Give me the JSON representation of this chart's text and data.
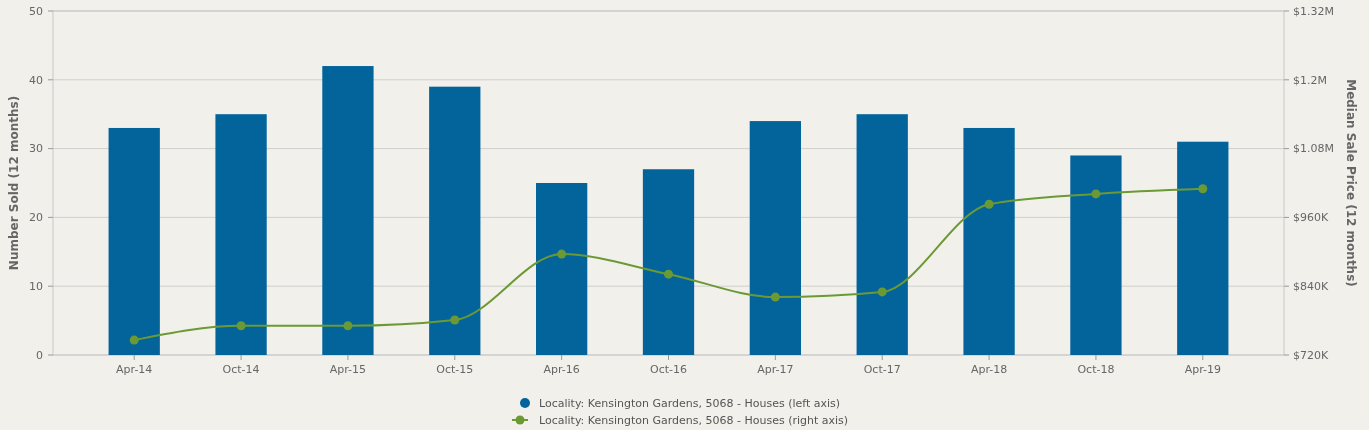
{
  "chart_data": {
    "type": "bar",
    "categories": [
      "Apr-14",
      "Oct-14",
      "Apr-15",
      "Oct-15",
      "Apr-16",
      "Oct-16",
      "Apr-17",
      "Oct-17",
      "Apr-18",
      "Oct-18",
      "Apr-19"
    ],
    "series": [
      {
        "name": "Locality: Kensington Gardens, 5068 - Houses (left axis)",
        "color": "#03649b",
        "values": [
          33,
          35,
          42,
          39,
          25,
          27,
          34,
          35,
          33,
          29,
          31
        ]
      },
      {
        "name": "Locality: Kensington Gardens, 5068 - Houses (right axis)",
        "type": "line",
        "axis": "y2",
        "color": "#6b9a34",
        "marker": "circle",
        "values": [
          746000,
          771000,
          771000,
          781000,
          896000,
          861000,
          821000,
          830000,
          983000,
          1001000,
          1010000
        ]
      }
    ],
    "ylabel": "Number Sold (12 months)",
    "y2label": "Median Sale Price (12 months)",
    "ylim": [
      0,
      50
    ],
    "yticks": [
      0,
      10,
      20,
      30,
      40,
      50
    ],
    "y2lim": [
      720000,
      1320000
    ],
    "y2ticks": [
      {
        "value": 720000,
        "label": "$720K"
      },
      {
        "value": 840000,
        "label": "$840K"
      },
      {
        "value": 960000,
        "label": "$960K"
      },
      {
        "value": 1080000,
        "label": "$1.08M"
      },
      {
        "value": 1200000,
        "label": "$1.2M"
      },
      {
        "value": 1320000,
        "label": "$1.32M"
      }
    ],
    "grid": "y",
    "legend": "bottom"
  }
}
